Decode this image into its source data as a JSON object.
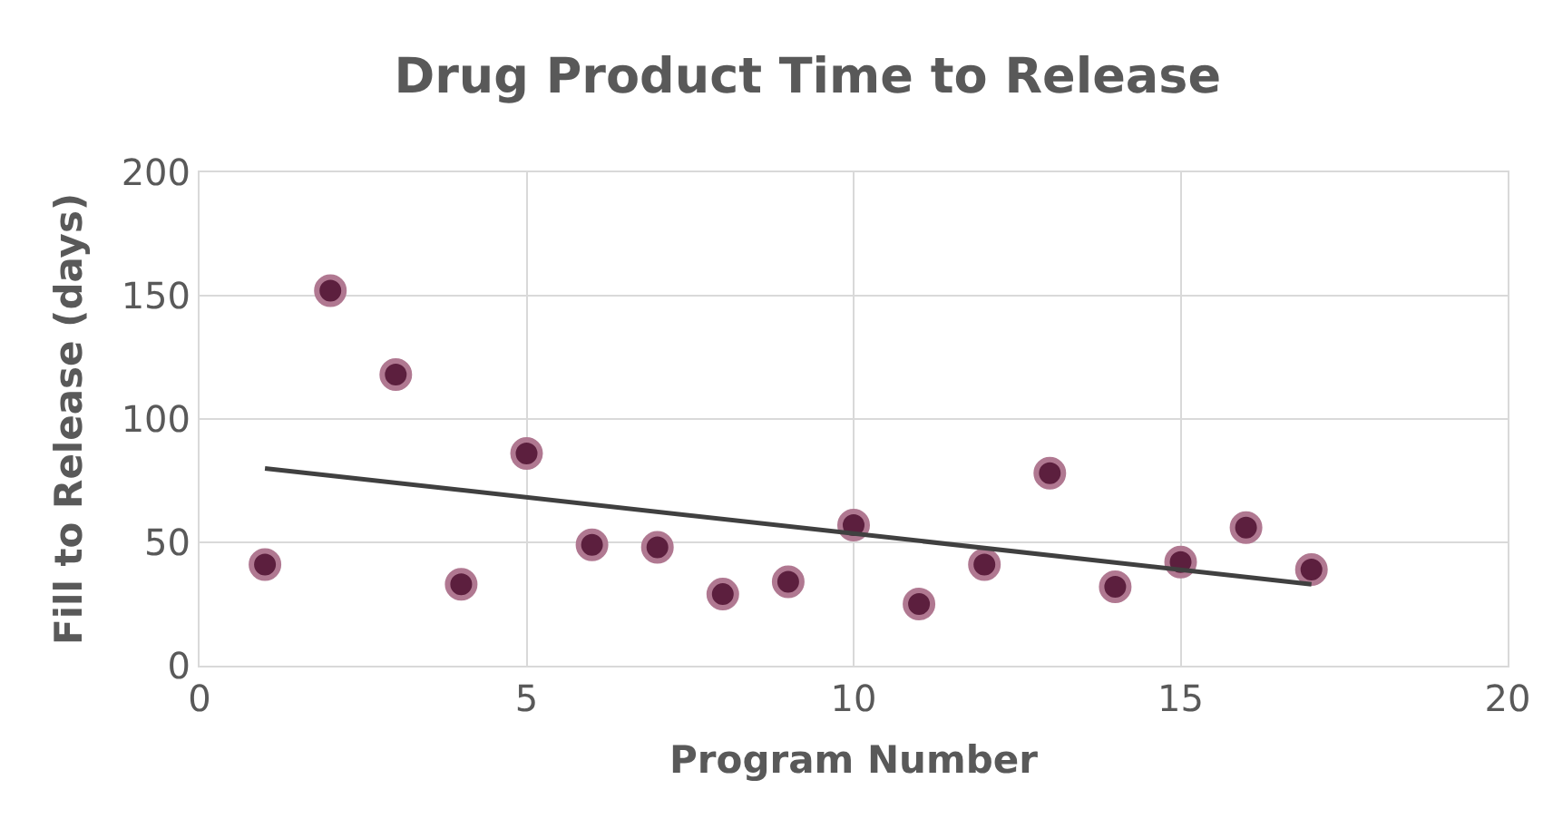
{
  "chart_data": {
    "type": "scatter",
    "title": "Drug Product Time to Release",
    "xlabel": "Program Number",
    "ylabel": "Fill to Release (days)",
    "xlim": [
      0,
      20
    ],
    "xticks": [
      0,
      5,
      10,
      15,
      20
    ],
    "ylim": [
      0,
      200
    ],
    "yticks": [
      0,
      50,
      100,
      150,
      200
    ],
    "grid": true,
    "legend": false,
    "marker": "circle",
    "series": [
      {
        "color": "#5c1f3e",
        "x": [
          1,
          2,
          3,
          4,
          5,
          6,
          7,
          8,
          9,
          10,
          11,
          12,
          13,
          14,
          15,
          16,
          17
        ],
        "values": [
          41,
          152,
          118,
          33,
          86,
          49,
          48,
          29,
          34,
          57,
          25,
          41,
          78,
          32,
          42,
          56,
          39
        ]
      },
      {
        "type": "line",
        "marker": "none",
        "color": "#404040",
        "x": [
          1,
          17
        ],
        "values": [
          80,
          33
        ]
      }
    ]
  }
}
